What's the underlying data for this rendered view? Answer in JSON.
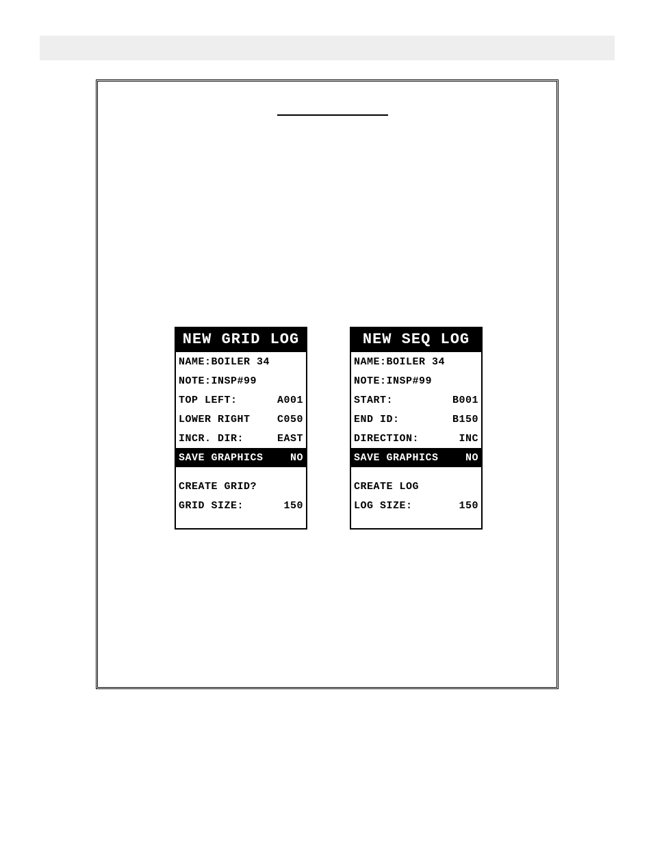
{
  "grid": {
    "title": "NEW GRID LOG",
    "name_label": "NAME:",
    "name_value": "BOILER 34",
    "note_label": "NOTE:",
    "note_value": "INSP#99",
    "row1_label": "TOP LEFT:",
    "row1_value": "A001",
    "row2_label": "LOWER RIGHT",
    "row2_value": "C050",
    "row3_label": "INCR. DIR:",
    "row3_value": "EAST",
    "save_label": "SAVE GRAPHICS",
    "save_value": "NO",
    "create_label": "CREATE GRID?",
    "size_label": "GRID SIZE:",
    "size_value": "150"
  },
  "seq": {
    "title": "NEW SEQ LOG",
    "name_label": "NAME:",
    "name_value": "BOILER 34",
    "note_label": "NOTE:",
    "note_value": "INSP#99",
    "row1_label": "START:",
    "row1_value": "B001",
    "row2_label": "END ID:",
    "row2_value": "B150",
    "row3_label": "DIRECTION:",
    "row3_value": "INC",
    "save_label": "SAVE GRAPHICS",
    "save_value": "NO",
    "create_label": "CREATE LOG",
    "size_label": "LOG SIZE:",
    "size_value": "150"
  }
}
